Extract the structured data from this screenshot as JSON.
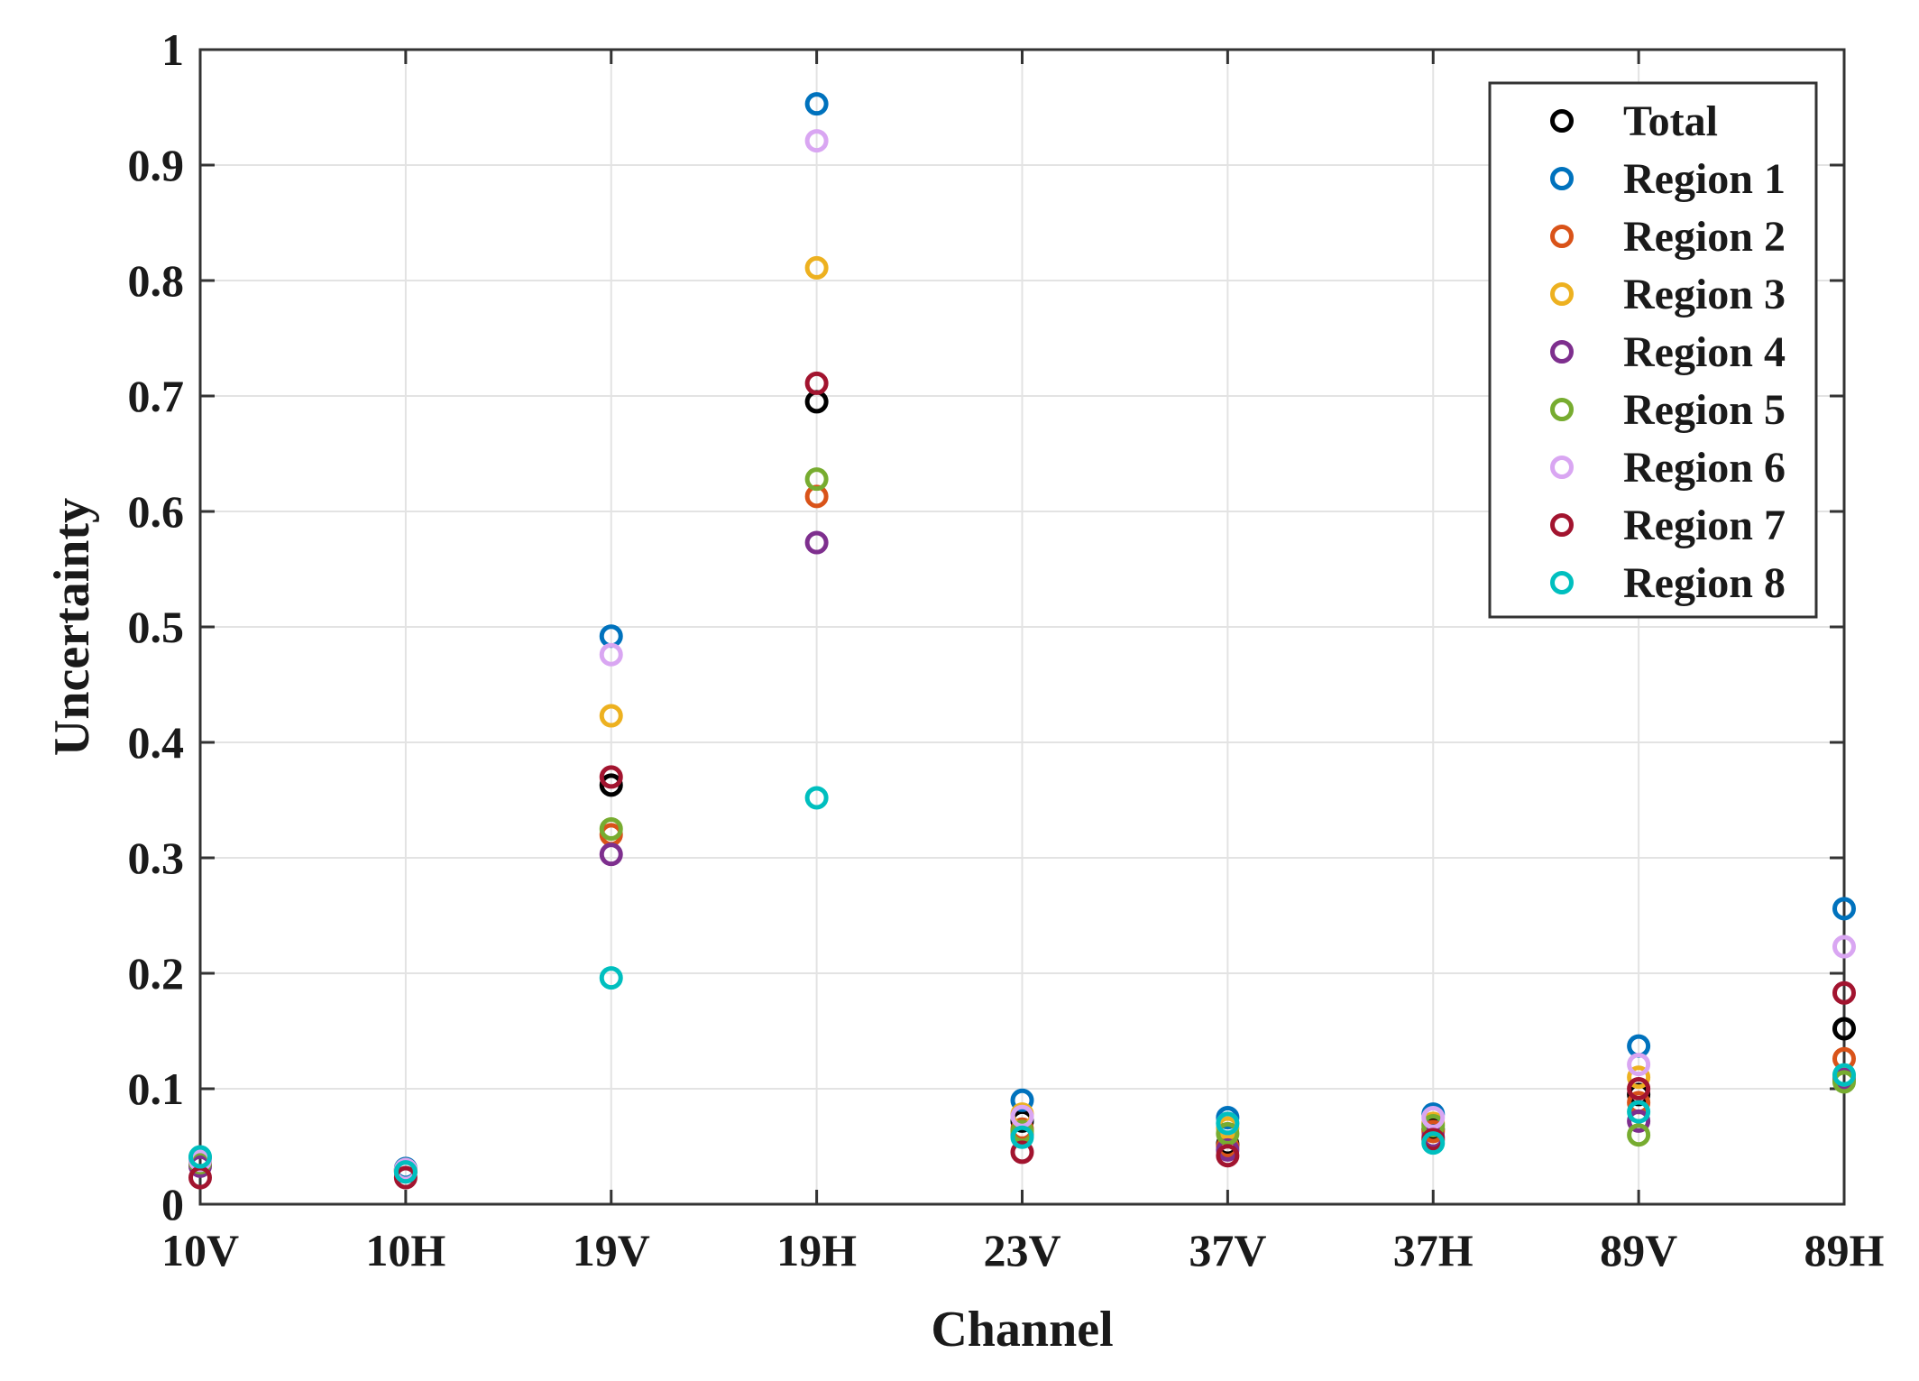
{
  "chart_data": {
    "type": "scatter",
    "title": "",
    "xlabel": "Channel",
    "ylabel": "Uncertainty",
    "categories": [
      "10V",
      "10H",
      "19V",
      "19H",
      "23V",
      "37V",
      "37H",
      "89V",
      "89H"
    ],
    "ylim": [
      0,
      1
    ],
    "yticks": [
      0,
      0.1,
      0.2,
      0.3,
      0.4,
      0.5,
      0.6,
      0.7,
      0.8,
      0.9,
      1
    ],
    "ytick_labels": [
      "0",
      "0.1",
      "0.2",
      "0.3",
      "0.4",
      "0.5",
      "0.6",
      "0.7",
      "0.8",
      "0.9",
      "1"
    ],
    "grid": true,
    "legend_position": "top-right",
    "series": [
      {
        "name": "Total",
        "color": "#000000",
        "values": [
          0.036,
          0.03,
          0.363,
          0.695,
          0.072,
          0.052,
          0.065,
          0.095,
          0.152
        ]
      },
      {
        "name": "Region 1",
        "color": "#0072bd",
        "values": [
          0.04,
          0.031,
          0.492,
          0.953,
          0.09,
          0.075,
          0.078,
          0.137,
          0.256
        ]
      },
      {
        "name": "Region 2",
        "color": "#d95319",
        "values": [
          0.035,
          0.029,
          0.32,
          0.613,
          0.065,
          0.05,
          0.063,
          0.088,
          0.126
        ]
      },
      {
        "name": "Region 3",
        "color": "#edb120",
        "values": [
          0.037,
          0.03,
          0.423,
          0.811,
          0.078,
          0.066,
          0.07,
          0.11,
          0.111
        ]
      },
      {
        "name": "Region 4",
        "color": "#7e2f8e",
        "values": [
          0.033,
          0.028,
          0.303,
          0.573,
          0.06,
          0.047,
          0.058,
          0.072,
          0.108
        ]
      },
      {
        "name": "Region 5",
        "color": "#77ac30",
        "values": [
          0.036,
          0.029,
          0.325,
          0.628,
          0.063,
          0.061,
          0.068,
          0.06,
          0.106
        ]
      },
      {
        "name": "Region 6",
        "color": "#d9a6f2",
        "values": [
          0.038,
          0.03,
          0.476,
          0.921,
          0.076,
          0.07,
          0.075,
          0.121,
          0.223
        ]
      },
      {
        "name": "Region 7",
        "color": "#a2142f",
        "values": [
          0.023,
          0.023,
          0.37,
          0.711,
          0.045,
          0.042,
          0.056,
          0.1,
          0.183
        ]
      },
      {
        "name": "Region 8",
        "color": "#00bfbf",
        "values": [
          0.041,
          0.028,
          0.196,
          0.352,
          0.058,
          0.07,
          0.053,
          0.08,
          0.112
        ]
      }
    ]
  }
}
